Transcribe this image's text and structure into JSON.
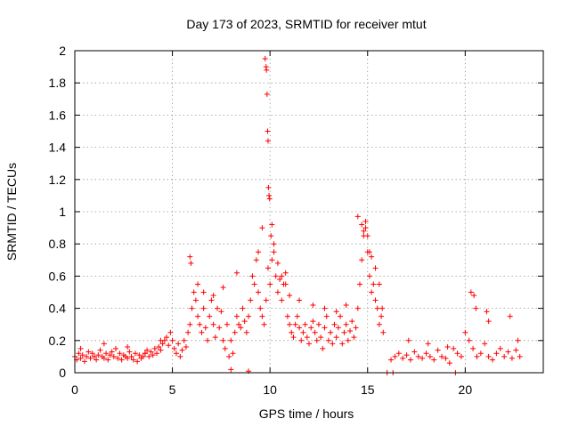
{
  "chart_data": {
    "type": "scatter",
    "title": "Day 173 of 2023, SRMTID for receiver mtut",
    "xlabel": "GPS time / hours",
    "ylabel": "SRMTID / TECUs",
    "xlim": [
      0,
      24
    ],
    "ylim": [
      0,
      2
    ],
    "x_ticks": [
      0,
      5,
      10,
      15,
      20
    ],
    "x_tick_labels": [
      "0",
      "5",
      "10",
      "15",
      "20"
    ],
    "y_ticks": [
      0,
      0.2,
      0.4,
      0.6,
      0.8,
      1,
      1.2,
      1.4,
      1.6,
      1.8,
      2
    ],
    "y_tick_labels": [
      "0",
      "0.2",
      "0.4",
      "0.6",
      "0.8",
      "1",
      "1.2",
      "1.4",
      "1.6",
      "1.8",
      "2"
    ],
    "grid": true,
    "marker": "plus",
    "series_color": "#ff0000",
    "series": [
      {
        "name": "SRMTID",
        "x": [
          0.0,
          0.1,
          0.2,
          0.3,
          0.4,
          0.5,
          0.6,
          0.7,
          0.8,
          0.9,
          1.0,
          1.1,
          1.2,
          1.3,
          1.4,
          1.5,
          1.6,
          1.7,
          1.8,
          1.9,
          2.0,
          2.1,
          2.2,
          2.3,
          2.4,
          2.5,
          2.6,
          2.7,
          2.8,
          2.9,
          3.0,
          3.1,
          3.2,
          3.3,
          3.4,
          3.5,
          3.6,
          3.7,
          3.8,
          3.9,
          4.0,
          4.1,
          4.2,
          4.3,
          4.4,
          4.5,
          4.6,
          4.7,
          4.8,
          4.9,
          5.0,
          5.1,
          5.2,
          5.3,
          5.4,
          5.5,
          5.6,
          5.7,
          5.8,
          5.9,
          6.0,
          6.1,
          6.2,
          6.3,
          6.4,
          6.5,
          6.6,
          6.7,
          6.8,
          6.9,
          7.0,
          7.1,
          7.2,
          7.3,
          7.4,
          7.5,
          7.6,
          7.7,
          7.8,
          7.9,
          8.0,
          8.1,
          8.2,
          8.3,
          8.4,
          8.5,
          8.6,
          8.7,
          8.8,
          8.9,
          9.0,
          9.1,
          9.2,
          9.3,
          9.4,
          9.5,
          9.6,
          9.7,
          9.8,
          9.9,
          10.0,
          10.1,
          10.2,
          10.3,
          10.4,
          10.5,
          10.6,
          10.7,
          10.8,
          10.9,
          11.0,
          11.1,
          11.2,
          11.3,
          11.4,
          11.5,
          11.6,
          11.7,
          11.8,
          11.9,
          12.0,
          12.1,
          12.2,
          12.3,
          12.4,
          12.5,
          12.6,
          12.7,
          12.8,
          12.9,
          13.0,
          13.1,
          13.2,
          13.3,
          13.4,
          13.5,
          13.6,
          13.7,
          13.8,
          13.9,
          14.0,
          14.1,
          14.2,
          14.3,
          14.4,
          14.5,
          14.6,
          14.7,
          14.8,
          14.9,
          15.0,
          15.1,
          15.2,
          15.3,
          15.4,
          15.5,
          15.6,
          15.7,
          15.8,
          16.2,
          16.4,
          16.6,
          16.8,
          17.0,
          17.2,
          17.4,
          17.6,
          17.8,
          18.0,
          18.2,
          18.4,
          18.6,
          18.8,
          19.0,
          19.2,
          19.4,
          19.6,
          19.8,
          20.0,
          20.2,
          20.4,
          20.6,
          20.8,
          21.0,
          21.2,
          21.4,
          21.6,
          21.8,
          22.0,
          22.2,
          22.4,
          22.6,
          22.8,
          0.3,
          1.5,
          2.7,
          3.6,
          4.4,
          5.9,
          5.95,
          6.3,
          6.6,
          7.1,
          7.6,
          8.0,
          8.3,
          8.9,
          9.4,
          9.6,
          9.75,
          9.8,
          9.82,
          9.85,
          9.88,
          9.9,
          9.92,
          9.95,
          9.98,
          10.05,
          10.1,
          10.2,
          10.4,
          10.6,
          10.8,
          11.0,
          11.5,
          12.2,
          12.8,
          13.4,
          13.9,
          14.5,
          14.7,
          14.8,
          14.9,
          15.0,
          15.1,
          15.2,
          15.4,
          15.6,
          15.75,
          16.0,
          16.3,
          17.1,
          18.1,
          19.1,
          19.5,
          20.3,
          20.45,
          20.55,
          21.1,
          21.2,
          22.3,
          22.7
        ],
        "y": [
          0.1,
          0.08,
          0.12,
          0.09,
          0.11,
          0.07,
          0.1,
          0.13,
          0.09,
          0.12,
          0.1,
          0.08,
          0.11,
          0.14,
          0.1,
          0.09,
          0.12,
          0.08,
          0.11,
          0.13,
          0.1,
          0.15,
          0.09,
          0.12,
          0.08,
          0.11,
          0.1,
          0.09,
          0.13,
          0.1,
          0.08,
          0.12,
          0.07,
          0.11,
          0.09,
          0.1,
          0.12,
          0.14,
          0.1,
          0.13,
          0.11,
          0.15,
          0.12,
          0.16,
          0.14,
          0.18,
          0.2,
          0.22,
          0.17,
          0.25,
          0.2,
          0.15,
          0.12,
          0.18,
          0.1,
          0.14,
          0.2,
          0.16,
          0.25,
          0.3,
          0.4,
          0.5,
          0.45,
          0.35,
          0.3,
          0.25,
          0.4,
          0.28,
          0.2,
          0.35,
          0.45,
          0.3,
          0.22,
          0.4,
          0.28,
          0.38,
          0.2,
          0.15,
          0.3,
          0.1,
          0.2,
          0.12,
          0.25,
          0.35,
          0.3,
          0.28,
          0.4,
          0.32,
          0.25,
          0.35,
          0.45,
          0.6,
          0.55,
          0.7,
          0.5,
          0.4,
          0.35,
          0.3,
          0.45,
          0.65,
          0.55,
          0.7,
          0.8,
          0.6,
          0.5,
          0.58,
          0.45,
          0.55,
          0.62,
          0.35,
          0.3,
          0.25,
          0.22,
          0.3,
          0.35,
          0.28,
          0.2,
          0.25,
          0.3,
          0.22,
          0.18,
          0.28,
          0.32,
          0.25,
          0.2,
          0.3,
          0.22,
          0.15,
          0.28,
          0.35,
          0.2,
          0.25,
          0.18,
          0.3,
          0.22,
          0.28,
          0.35,
          0.18,
          0.25,
          0.3,
          0.2,
          0.26,
          0.32,
          0.22,
          0.28,
          0.4,
          0.55,
          0.7,
          0.85,
          0.9,
          0.75,
          0.6,
          0.5,
          0.55,
          0.45,
          0.4,
          0.3,
          0.35,
          0.25,
          0.08,
          0.1,
          0.12,
          0.09,
          0.11,
          0.08,
          0.13,
          0.1,
          0.09,
          0.12,
          0.1,
          0.08,
          0.14,
          0.1,
          0.09,
          0.06,
          0.15,
          0.12,
          0.1,
          0.25,
          0.2,
          0.15,
          0.1,
          0.12,
          0.18,
          0.1,
          0.08,
          0.12,
          0.15,
          0.1,
          0.13,
          0.09,
          0.14,
          0.1,
          0.15,
          0.18,
          0.16,
          0.12,
          0.2,
          0.72,
          0.68,
          0.55,
          0.5,
          0.48,
          0.53,
          0.02,
          0.62,
          0.01,
          0.75,
          0.9,
          1.95,
          1.9,
          1.88,
          1.73,
          1.5,
          1.44,
          1.15,
          1.1,
          1.08,
          0.85,
          0.92,
          0.75,
          0.68,
          0.6,
          0.55,
          0.48,
          0.45,
          0.42,
          0.4,
          0.38,
          0.42,
          0.97,
          0.92,
          0.88,
          0.94,
          0.85,
          0.75,
          0.72,
          0.65,
          0.55,
          0.4,
          0.0,
          0.0,
          0.2,
          0.18,
          0.16,
          0.0,
          0.5,
          0.48,
          0.4,
          0.38,
          0.32,
          0.35,
          0.2
        ]
      }
    ]
  }
}
